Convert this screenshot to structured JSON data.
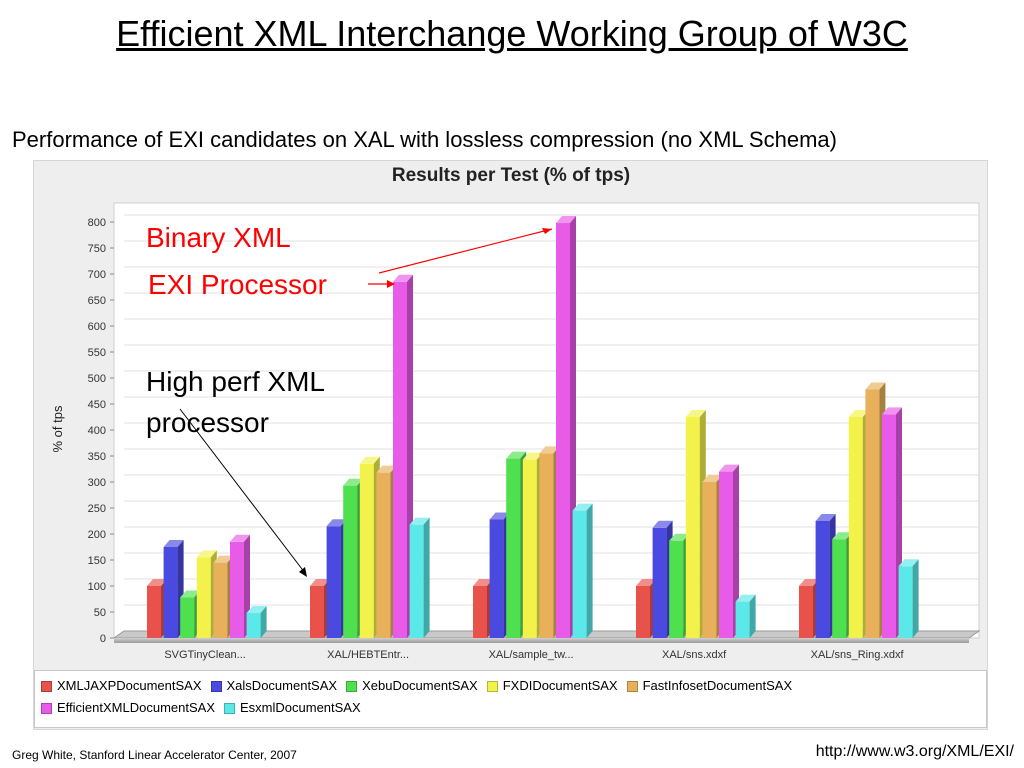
{
  "slide": {
    "title": "Efficient XML Interchange Working Group of W3C",
    "subtitle": "Performance of EXI candidates on XAL with lossless compression (no XML Schema)",
    "footer_left": "Greg White, Stanford Linear Accelerator Center, 2007",
    "footer_right": "http://www.w3.org/XML/EXI/"
  },
  "annotations": {
    "binary_xml": "Binary XML",
    "exi_processor": "EXI Processor",
    "high_perf_line1": "High perf XML",
    "high_perf_line2": "processor",
    "color": "#ff0000"
  },
  "chart_data": {
    "type": "bar",
    "title": "Results per Test (% of tps)",
    "xlabel": "",
    "ylabel": "% of tps",
    "ylim": [
      0,
      800
    ],
    "yticks": [
      0,
      50,
      100,
      150,
      200,
      250,
      300,
      350,
      400,
      450,
      500,
      550,
      600,
      650,
      700,
      750,
      800
    ],
    "grid": true,
    "legend_position": "bottom",
    "categories": [
      "SVGTinyClean...",
      "XAL/HEBTEntr...",
      "XAL/sample_tw...",
      "XAL/sns.xdxf",
      "XAL/sns_Ring.xdxf"
    ],
    "series": [
      {
        "name": "XMLJAXPDocumentSAX",
        "color": "#e8524a",
        "values": [
          100,
          100,
          100,
          100,
          100
        ]
      },
      {
        "name": "XalsDocumentSAX",
        "color": "#4a4ae0",
        "values": [
          175,
          215,
          228,
          212,
          225
        ]
      },
      {
        "name": "XebuDocumentSAX",
        "color": "#4ee04e",
        "values": [
          78,
          293,
          345,
          187,
          190
        ]
      },
      {
        "name": "FXDIDocumentSAX",
        "color": "#f2f24a",
        "values": [
          155,
          335,
          343,
          425,
          425
        ]
      },
      {
        "name": "FastInfosetDocumentSAX",
        "color": "#e8b05a",
        "values": [
          145,
          318,
          355,
          300,
          478
        ]
      },
      {
        "name": "EfficientXMLDocumentSAX",
        "color": "#e85ae8",
        "values": [
          185,
          685,
          798,
          320,
          430
        ]
      },
      {
        "name": "EsxmlDocumentSAX",
        "color": "#5ae8e8",
        "values": [
          48,
          218,
          245,
          70,
          138
        ]
      }
    ]
  }
}
